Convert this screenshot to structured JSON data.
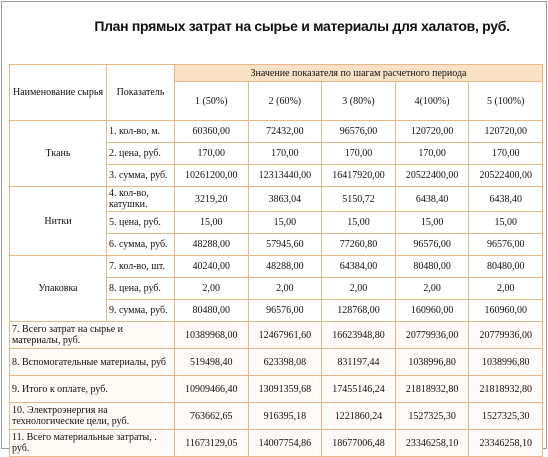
{
  "title": "План прямых затрат на сырье и материалы для халатов, руб.",
  "table": {
    "header": {
      "material": "Наименование сырья",
      "indicator": "Показатель",
      "group": "Значение показателя по шагам расчетного периода",
      "steps": [
        "1 (50%)",
        "2 (60%)",
        "3 (80%)",
        "4(100%)",
        "5 (100%)"
      ]
    },
    "groups": [
      {
        "name": "Ткань",
        "rows": [
          {
            "label": "1. кол-во, м.",
            "values": [
              "60360,00",
              "72432,00",
              "96576,00",
              "120720,00",
              "120720,00"
            ]
          },
          {
            "label": "2. цена, руб.",
            "values": [
              "170,00",
              "170,00",
              "170,00",
              "170,00",
              "170,00"
            ]
          },
          {
            "label": "3. сумма, руб.",
            "values": [
              "10261200,00",
              "12313440,00",
              "16417920,00",
              "20522400,00",
              "20522400,00"
            ]
          }
        ]
      },
      {
        "name": "Нитки",
        "rows": [
          {
            "label": "4. кол-во, катушки.",
            "values": [
              "3219,20",
              "3863,04",
              "5150,72",
              "6438,40",
              "6438,40"
            ]
          },
          {
            "label": "5. цена, руб.",
            "values": [
              "15,00",
              "15,00",
              "15,00",
              "15,00",
              "15,00"
            ]
          },
          {
            "label": "6. сумма, руб.",
            "values": [
              "48288,00",
              "57945,60",
              "77260,80",
              "96576,00",
              "96576,00"
            ]
          }
        ]
      },
      {
        "name": "Упаковка",
        "rows": [
          {
            "label": "7. кол-во, шт.",
            "values": [
              "40240,00",
              "48288,00",
              "64384,00",
              "80480,00",
              "80480,00"
            ]
          },
          {
            "label": "8. цена, руб.",
            "values": [
              "2,00",
              "2,00",
              "2,00",
              "2,00",
              "2,00"
            ]
          },
          {
            "label": "9. сумма, руб.",
            "values": [
              "80480,00",
              "96576,00",
              "128768,00",
              "160960,00",
              "160960,00"
            ]
          }
        ]
      }
    ],
    "totals": [
      {
        "label": "7. Всего затрат на сырье и материалы, руб.",
        "values": [
          "10389968,00",
          "12467961,60",
          "16623948,80",
          "20779936,00",
          "20779936,00"
        ]
      },
      {
        "label": "8. Вспомогательные материалы, руб",
        "values": [
          "519498,40",
          "623398,08",
          "831197,44",
          "1038996,80",
          "1038996,80"
        ]
      },
      {
        "label": "9. Итого к оплате, руб.",
        "values": [
          "10909466,40",
          "13091359,68",
          "17455146,24",
          "21818932,80",
          "21818932,80"
        ]
      },
      {
        "label": "10. Электроэнергия на технологические цели, руб.",
        "values": [
          "763662,65",
          "916395,18",
          "1221860,24",
          "1527325,30",
          "1527325,30"
        ]
      },
      {
        "label": "11. Всего материальные затраты, . руб.",
        "values": [
          "11673129,05",
          "14007754,86",
          "18677006,48",
          "23346258,10",
          "23346258,10"
        ]
      }
    ]
  }
}
